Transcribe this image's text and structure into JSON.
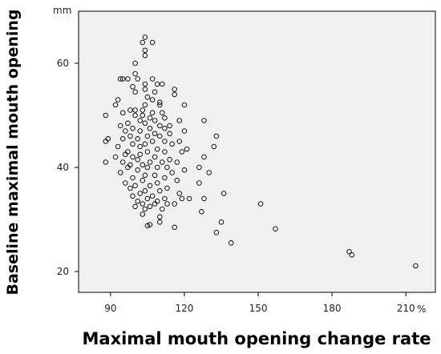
{
  "chart_data": {
    "type": "scatter",
    "title": "",
    "xlabel": "Maximal mouth opening change rate",
    "ylabel": "Baseline maximal mouth opening",
    "x_unit": "%",
    "y_unit": "mm",
    "xlim": [
      77,
      222
    ],
    "ylim": [
      16,
      70
    ],
    "x_ticks": [
      "90",
      "120",
      "150",
      "180",
      "210"
    ],
    "y_ticks": [
      "20",
      "40",
      "60"
    ],
    "grid": false,
    "legend": "none",
    "background_color": "#f0f0f0",
    "marker_color": "#000000",
    "points": [
      [
        104,
        65
      ],
      [
        103,
        64
      ],
      [
        107,
        64
      ],
      [
        104,
        62.5
      ],
      [
        104,
        61.5
      ],
      [
        100,
        60
      ],
      [
        100,
        58
      ],
      [
        94,
        57
      ],
      [
        95,
        57
      ],
      [
        97,
        57
      ],
      [
        101,
        57
      ],
      [
        107,
        57
      ],
      [
        104,
        56
      ],
      [
        109,
        56
      ],
      [
        111,
        56
      ],
      [
        99,
        55.5
      ],
      [
        104,
        55
      ],
      [
        116,
        55
      ],
      [
        100,
        54.5
      ],
      [
        108,
        54.5
      ],
      [
        116,
        54
      ],
      [
        105,
        53.5
      ],
      [
        93,
        53
      ],
      [
        107,
        53
      ],
      [
        110,
        52.5
      ],
      [
        104,
        52
      ],
      [
        110,
        52
      ],
      [
        120,
        52
      ],
      [
        92,
        52
      ],
      [
        98,
        51
      ],
      [
        100,
        51
      ],
      [
        103,
        51
      ],
      [
        107,
        50.5
      ],
      [
        111,
        50.5
      ],
      [
        95,
        50.5
      ],
      [
        88,
        50
      ],
      [
        100,
        50
      ],
      [
        103,
        50
      ],
      [
        106,
        49.5
      ],
      [
        112,
        49.5
      ],
      [
        102,
        49
      ],
      [
        108,
        49
      ],
      [
        118,
        49
      ],
      [
        128,
        49
      ],
      [
        97,
        48.5
      ],
      [
        104,
        48.5
      ],
      [
        110,
        48
      ],
      [
        114,
        48
      ],
      [
        94,
        48
      ],
      [
        99,
        47.5
      ],
      [
        106,
        47.5
      ],
      [
        112,
        47.5
      ],
      [
        120,
        47
      ],
      [
        102,
        47
      ],
      [
        96,
        47
      ],
      [
        108,
        46.5
      ],
      [
        114,
        46.5
      ],
      [
        133,
        46
      ],
      [
        98,
        46
      ],
      [
        105,
        46
      ],
      [
        110,
        46
      ],
      [
        89,
        45.5
      ],
      [
        95,
        45.5
      ],
      [
        101,
        45.5
      ],
      [
        107,
        45
      ],
      [
        112,
        45
      ],
      [
        118,
        45
      ],
      [
        88,
        45
      ],
      [
        99,
        44.5
      ],
      [
        104,
        44.5
      ],
      [
        115,
        44.5
      ],
      [
        132,
        44
      ],
      [
        93,
        44
      ],
      [
        102,
        44
      ],
      [
        109,
        43.5
      ],
      [
        121,
        43.5
      ],
      [
        97,
        43
      ],
      [
        105,
        43
      ],
      [
        112,
        43
      ],
      [
        119,
        43
      ],
      [
        96,
        42.5
      ],
      [
        102,
        42.5
      ],
      [
        108,
        42
      ],
      [
        128,
        42
      ],
      [
        92,
        42
      ],
      [
        99,
        42
      ],
      [
        114,
        41.5
      ],
      [
        101,
        41.5
      ],
      [
        106,
        41
      ],
      [
        95,
        41
      ],
      [
        111,
        41
      ],
      [
        117,
        41
      ],
      [
        88,
        41
      ],
      [
        98,
        40.5
      ],
      [
        103,
        40.5
      ],
      [
        109,
        40
      ],
      [
        113,
        40
      ],
      [
        126,
        40
      ],
      [
        97,
        40
      ],
      [
        105,
        40
      ],
      [
        120,
        39.5
      ],
      [
        101,
        39.5
      ],
      [
        115,
        39
      ],
      [
        130,
        39
      ],
      [
        94,
        39
      ],
      [
        104,
        38.5
      ],
      [
        108,
        38.5
      ],
      [
        112,
        38
      ],
      [
        99,
        38
      ],
      [
        103,
        37.5
      ],
      [
        117,
        37.5
      ],
      [
        96,
        37
      ],
      [
        109,
        37
      ],
      [
        126,
        37
      ],
      [
        100,
        36.5
      ],
      [
        106,
        36.5
      ],
      [
        113,
        36
      ],
      [
        98,
        36
      ],
      [
        104,
        35.5
      ],
      [
        110,
        35.5
      ],
      [
        118,
        35
      ],
      [
        136,
        35
      ],
      [
        102,
        35
      ],
      [
        107,
        34.5
      ],
      [
        99,
        34.5
      ],
      [
        122,
        34
      ],
      [
        112,
        34
      ],
      [
        119,
        34
      ],
      [
        105,
        34
      ],
      [
        128,
        34
      ],
      [
        101,
        33.5
      ],
      [
        109,
        33.5
      ],
      [
        116,
        33
      ],
      [
        103,
        33
      ],
      [
        108,
        33
      ],
      [
        113,
        33
      ],
      [
        151,
        33
      ],
      [
        100,
        32.5
      ],
      [
        106,
        32.5
      ],
      [
        111,
        32
      ],
      [
        104,
        32
      ],
      [
        127,
        31.5
      ],
      [
        103,
        31
      ],
      [
        110,
        30.5
      ],
      [
        135,
        29.5
      ],
      [
        110,
        29.5
      ],
      [
        106,
        29
      ],
      [
        105,
        28.8
      ],
      [
        116,
        28.5
      ],
      [
        157,
        28.2
      ],
      [
        133,
        27.5
      ],
      [
        139,
        25.5
      ],
      [
        187,
        23.8
      ],
      [
        188,
        23.2
      ],
      [
        214,
        21.1
      ]
    ]
  }
}
